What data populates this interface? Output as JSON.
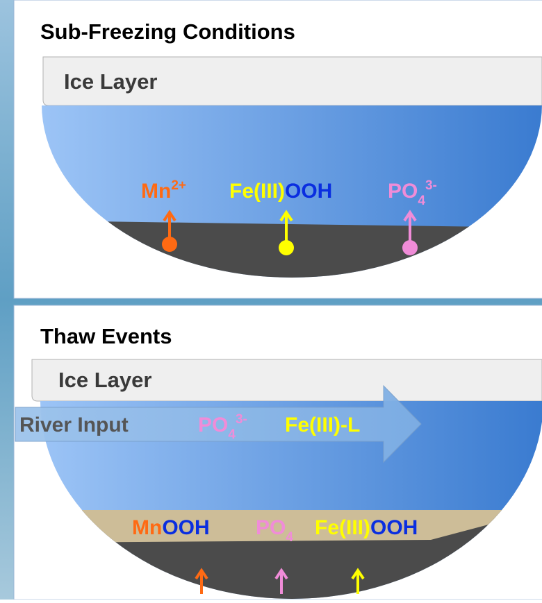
{
  "panels": [
    {
      "title": "Sub-Freezing Conditions",
      "ice_label": "Ice Layer",
      "species": [
        [
          "Mn",
          "2+"
        ],
        [
          "Fe(III)",
          "OOH"
        ],
        [
          "PO",
          "4",
          "3-"
        ]
      ]
    },
    {
      "title": "Thaw Events",
      "ice_label": "Ice Layer",
      "river_label": "River Input",
      "river_species": [
        [
          "PO",
          "4",
          "3-"
        ],
        [
          "Fe(III)-L"
        ]
      ],
      "sediment_species": [
        [
          "Mn",
          "OOH"
        ],
        [
          "PO",
          "4"
        ],
        [
          "Fe(III)",
          "OOH"
        ]
      ]
    }
  ]
}
